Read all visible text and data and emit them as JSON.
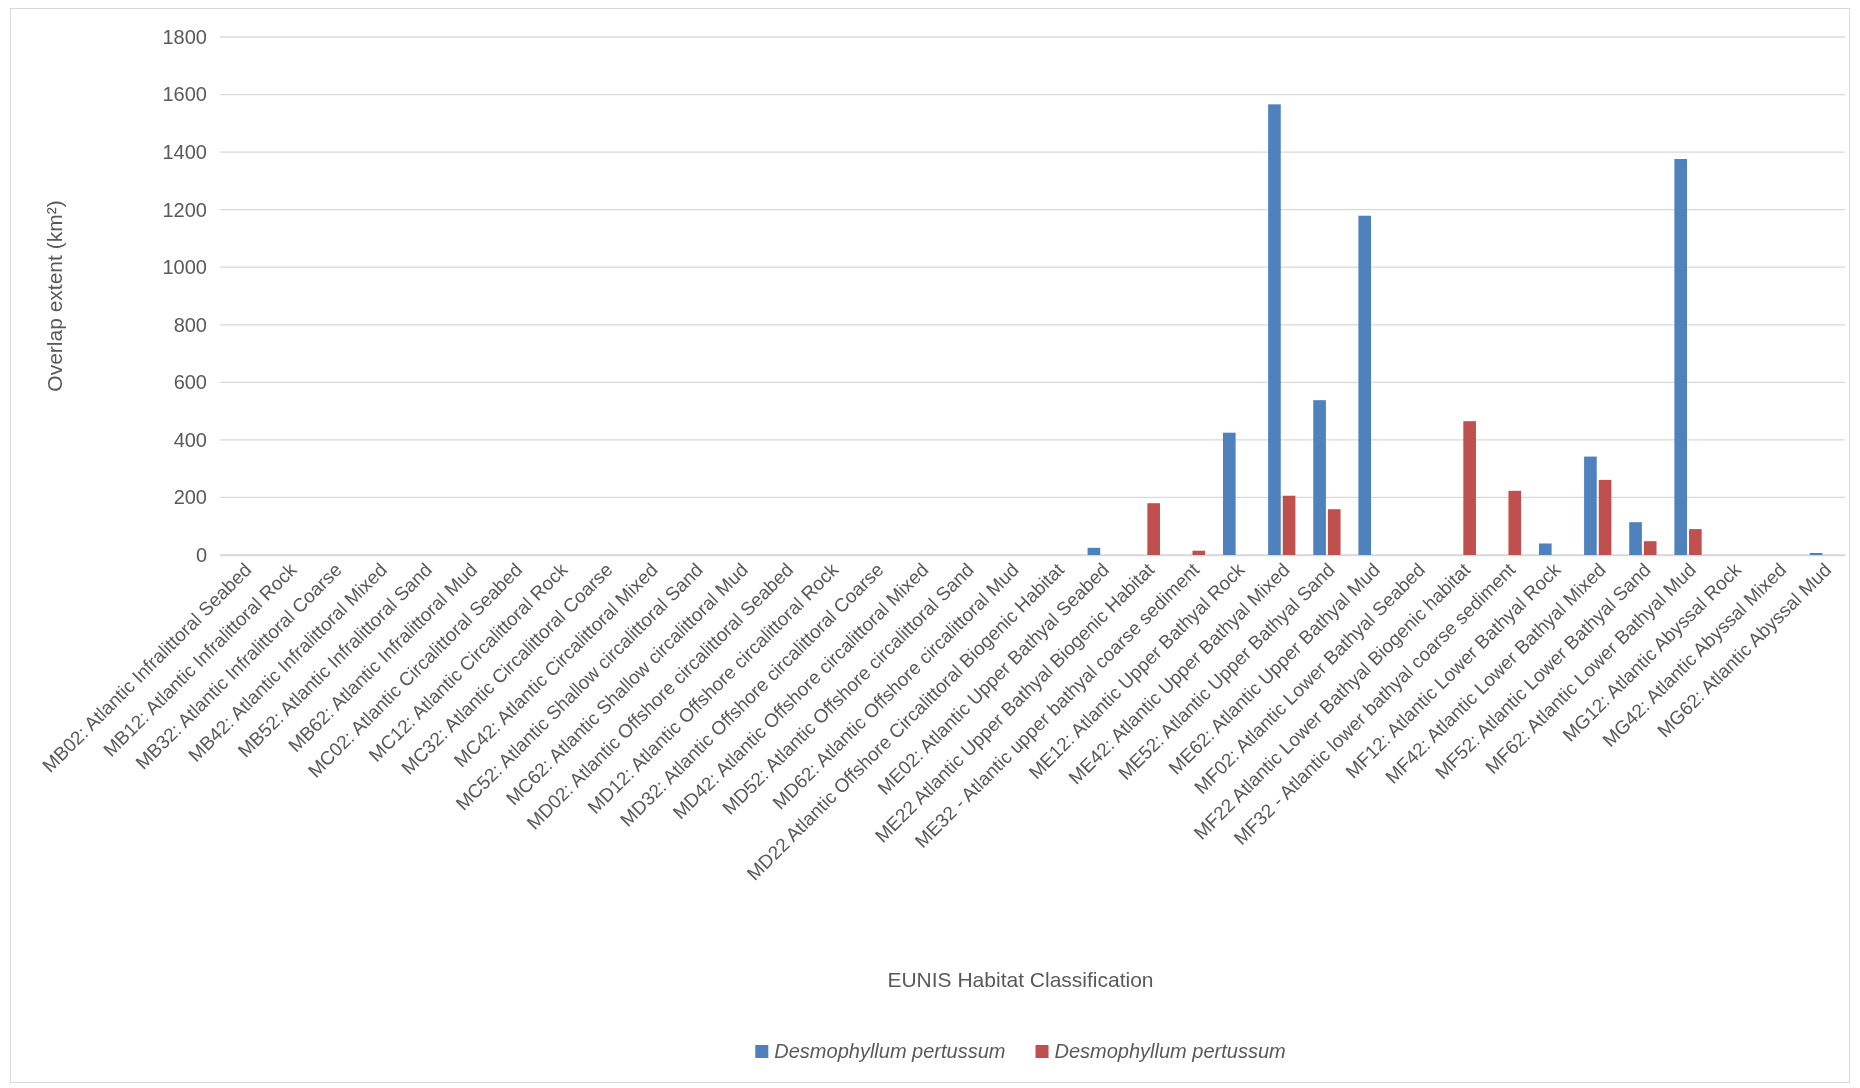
{
  "chart_data": {
    "type": "bar",
    "xlabel": "EUNIS Habitat Classification",
    "ylabel": "Overlap extent (km²)",
    "categories": [
      "MB02: Atlantic Infralittoral Seabed",
      "MB12: Atlantic Infralittoral Rock",
      "MB32: Atlantic Infralittoral Coarse",
      "MB42: Atlantic Infralittoral Mixed",
      "MB52: Atlantic Infralittoral Sand",
      "MB62: Atlantic Infralittoral Mud",
      "MC02: Atlantic Circalittoral Seabed",
      "MC12: Atlantic Circalittoral Rock",
      "MC32: Atlantic Circalittoral Coarse",
      "MC42: Atlantic Circalittoral Mixed",
      "MC52: Atlantic Shallow circalittoral Sand",
      "MC62: Atlantic Shallow circalittoral Mud",
      "MD02: Atlantic Offshore circalittoral Seabed",
      "MD12: Atlantic Offshore circalittoral Rock",
      "MD32: Atlantic Offshore circalittoral Coarse",
      "MD42: Atlantic Offshore circalittoral Mixed",
      "MD52: Atlantic Offshore circalittoral Sand",
      "MD62: Atlantic Offshore circalittoral Mud",
      "MD22 Atlantic Offshore Circalittoral Biogenic Habitat",
      "ME02: Atlantic Upper Bathyal Seabed",
      "ME22 Atlantic Upper Bathyal Biogenic Habitat",
      "ME32 - Atlantic upper bathyal coarse sediment",
      "ME12: Atlantic Upper Bathyal Rock",
      "ME42: Atlantic Upper Bathyal Mixed",
      "ME52: Atlantic Upper Bathyal Sand",
      "ME62: Atlantic Upper Bathyal Mud",
      "MF02: Atlantic Lower Bathyal Seabed",
      "MF22 Atlantic Lower Bathyal Biogenic habitat",
      "MF32 - Atlantic lower bathyal coarse sediment",
      "MF12: Atlantic Lower Bathyal Rock",
      "MF42: Atlantic Lower Bathyal Mixed",
      "MF52: Atlantic Lower Bathyal Sand",
      "MF62: Atlantic Lower Bathyal Mud",
      "MG12: Atlantic Abyssal Rock",
      "MG42: Atlantic Abyssal Mixed",
      "MG62: Atlantic Abyssal Mud"
    ],
    "series": [
      {
        "name": "Desmophyllum pertussum",
        "color": "#4f81bd",
        "values": [
          0,
          0,
          0,
          0,
          0,
          0,
          0,
          0,
          0,
          0,
          0,
          0,
          0,
          0,
          0,
          0,
          0,
          0,
          0,
          25,
          0,
          0,
          425,
          1566,
          538,
          1179,
          0,
          0,
          0,
          40,
          342,
          114,
          1376,
          0,
          0,
          7
        ]
      },
      {
        "name": "Desmophyllum pertussum",
        "color": "#c0504d",
        "values": [
          0,
          0,
          0,
          0,
          0,
          0,
          0,
          0,
          0,
          0,
          0,
          0,
          0,
          0,
          0,
          0,
          0,
          0,
          0,
          0,
          180,
          15,
          0,
          206,
          159,
          0,
          0,
          465,
          223,
          0,
          261,
          48,
          90,
          0,
          0,
          0
        ]
      }
    ],
    "ylim": [
      0,
      1800
    ],
    "yticks": [
      0,
      200,
      400,
      600,
      800,
      1000,
      1200,
      1400,
      1600,
      1800
    ],
    "grid": "y",
    "legend": "bottom"
  }
}
